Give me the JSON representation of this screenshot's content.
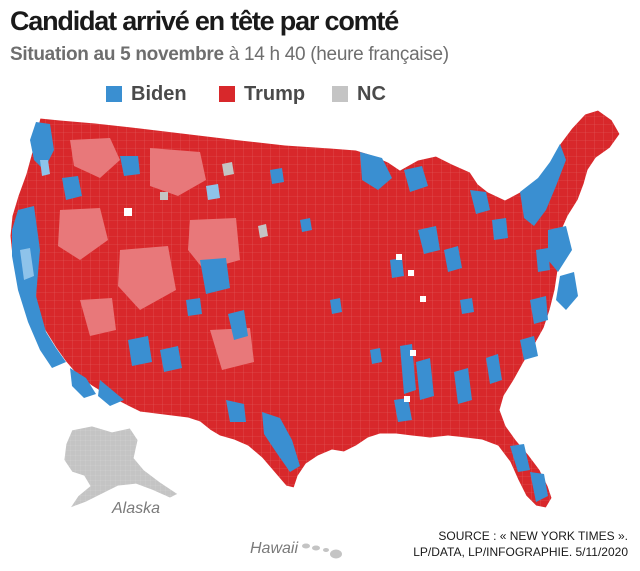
{
  "header": {
    "title": "Candidat arrivé en tête par comté",
    "subtitle_bold": "Situation au 5 novembre",
    "subtitle_rest": " à 14 h 40 (heure française)"
  },
  "legend": [
    {
      "label": "Biden",
      "color": "#3a8fd1"
    },
    {
      "label": "Trump",
      "color": "#d8282b"
    },
    {
      "label": "NC",
      "color": "#c4c4c4"
    }
  ],
  "map": {
    "labels": {
      "alaska": "Alaska",
      "hawaii": "Hawaii"
    },
    "colors": {
      "trump": "#d8282b",
      "trump_light": "#e8787a",
      "biden": "#3a8fd1",
      "biden_light": "#8ec3ea",
      "nc": "#c4c4c4",
      "border": "#ffffff"
    }
  },
  "source": {
    "line1": "SOURCE : « NEW YORK TIMES ».",
    "line2": "LP/DATA, LP/INFOGRAPHIE.  5/11/2020"
  }
}
